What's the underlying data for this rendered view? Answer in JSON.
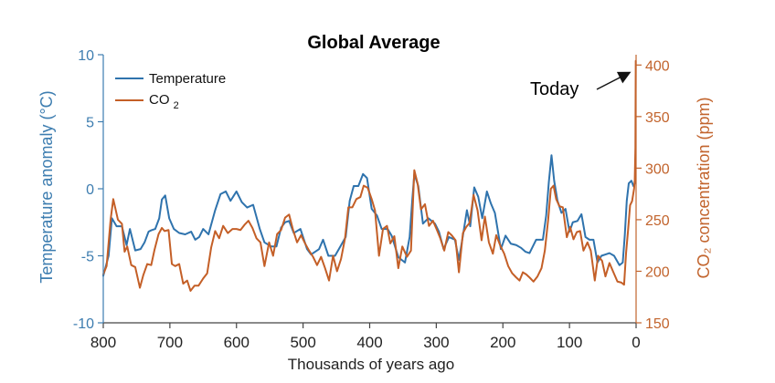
{
  "colors": {
    "temperature": "#2f73ad",
    "co2": "#c45f27",
    "axis_left": "#3d7db0",
    "axis_right": "#c2642d",
    "text": "#111111"
  },
  "chart_data": {
    "type": "line",
    "title": "Global Average",
    "xlabel": "Thousands of years ago",
    "ylabel_left": "Temperature anomaly (°C)",
    "ylabel_right": "CO₂ concentration (ppm)",
    "xlim": [
      800,
      0
    ],
    "ylim_left": [
      -10,
      10
    ],
    "ylim_right": [
      150,
      410
    ],
    "xticks": [
      "800",
      "700",
      "600",
      "500",
      "400",
      "300",
      "200",
      "100",
      "0"
    ],
    "yticks_left": [
      "10",
      "5",
      "0",
      "-5",
      "-10"
    ],
    "yticks_right": [
      "400",
      "350",
      "300",
      "250",
      "200",
      "150"
    ],
    "legend": [
      {
        "label": "Temperature"
      },
      {
        "label": "CO",
        "sub": "2"
      }
    ],
    "annotation": {
      "text": "Today"
    },
    "series": [
      {
        "name": "Temperature",
        "axis": "left",
        "points": [
          [
            800,
            -6.5
          ],
          [
            792,
            -5.0
          ],
          [
            787,
            -2.2
          ],
          [
            780,
            -2.8
          ],
          [
            772,
            -2.8
          ],
          [
            765,
            -4.2
          ],
          [
            760,
            -3.0
          ],
          [
            752,
            -4.6
          ],
          [
            744,
            -4.5
          ],
          [
            738,
            -4.0
          ],
          [
            732,
            -3.2
          ],
          [
            728,
            -3.1
          ],
          [
            722,
            -3.0
          ],
          [
            716,
            -2.2
          ],
          [
            712,
            -0.8
          ],
          [
            707,
            -0.5
          ],
          [
            701,
            -2.2
          ],
          [
            694,
            -3.0
          ],
          [
            686,
            -3.3
          ],
          [
            677,
            -3.4
          ],
          [
            668,
            -3.2
          ],
          [
            662,
            -3.8
          ],
          [
            656,
            -3.6
          ],
          [
            650,
            -3.0
          ],
          [
            642,
            -3.4
          ],
          [
            632,
            -1.6
          ],
          [
            624,
            -0.4
          ],
          [
            616,
            -0.2
          ],
          [
            609,
            -0.9
          ],
          [
            600,
            -0.2
          ],
          [
            592,
            -1.0
          ],
          [
            584,
            -1.4
          ],
          [
            575,
            -1.2
          ],
          [
            565,
            -3.0
          ],
          [
            558,
            -4.0
          ],
          [
            548,
            -4.3
          ],
          [
            540,
            -4.3
          ],
          [
            533,
            -2.9
          ],
          [
            527,
            -2.5
          ],
          [
            521,
            -2.4
          ],
          [
            514,
            -3.3
          ],
          [
            504,
            -3.0
          ],
          [
            494,
            -4.5
          ],
          [
            488,
            -4.9
          ],
          [
            476,
            -4.5
          ],
          [
            470,
            -3.8
          ],
          [
            462,
            -5.0
          ],
          [
            452,
            -5.0
          ],
          [
            444,
            -4.3
          ],
          [
            436,
            -3.6
          ],
          [
            430,
            -0.9
          ],
          [
            424,
            0.2
          ],
          [
            417,
            0.2
          ],
          [
            410,
            1.1
          ],
          [
            404,
            0.8
          ],
          [
            397,
            -1.5
          ],
          [
            389,
            -2.0
          ],
          [
            382,
            -3.0
          ],
          [
            373,
            -3.0
          ],
          [
            367,
            -3.5
          ],
          [
            357,
            -5.1
          ],
          [
            347,
            -5.5
          ],
          [
            340,
            -3.6
          ],
          [
            336,
            -0.8
          ],
          [
            333,
            1.1
          ],
          [
            327,
            0.2
          ],
          [
            320,
            -2.6
          ],
          [
            312,
            -2.2
          ],
          [
            302,
            -2.6
          ],
          [
            296,
            -3.2
          ],
          [
            289,
            -4.5
          ],
          [
            281,
            -3.6
          ],
          [
            272,
            -3.8
          ],
          [
            266,
            -5.3
          ],
          [
            260,
            -3.5
          ],
          [
            254,
            -1.6
          ],
          [
            249,
            -2.8
          ],
          [
            243,
            0.1
          ],
          [
            237,
            -0.6
          ],
          [
            231,
            -2.2
          ],
          [
            224,
            -0.2
          ],
          [
            218,
            -1.1
          ],
          [
            212,
            -1.8
          ],
          [
            203,
            -4.5
          ],
          [
            196,
            -3.5
          ],
          [
            188,
            -4.1
          ],
          [
            180,
            -4.2
          ],
          [
            173,
            -4.4
          ],
          [
            166,
            -4.7
          ],
          [
            160,
            -4.8
          ],
          [
            150,
            -3.8
          ],
          [
            140,
            -3.8
          ],
          [
            135,
            -2.0
          ],
          [
            131,
            0.5
          ],
          [
            127,
            2.5
          ],
          [
            123,
            0.6
          ],
          [
            118,
            -0.9
          ],
          [
            112,
            -1.8
          ],
          [
            106,
            -1.5
          ],
          [
            100,
            -3.2
          ],
          [
            95,
            -2.5
          ],
          [
            88,
            -2.4
          ],
          [
            82,
            -1.9
          ],
          [
            76,
            -3.6
          ],
          [
            70,
            -3.8
          ],
          [
            64,
            -3.8
          ],
          [
            58,
            -5.5
          ],
          [
            52,
            -5.0
          ],
          [
            46,
            -4.9
          ],
          [
            40,
            -4.8
          ],
          [
            33,
            -5.0
          ],
          [
            25,
            -5.7
          ],
          [
            20,
            -5.5
          ],
          [
            17,
            -3.5
          ],
          [
            14,
            -0.9
          ],
          [
            11,
            0.4
          ],
          [
            7,
            0.6
          ],
          [
            4,
            0.2
          ],
          [
            1,
            0.5
          ]
        ]
      },
      {
        "name": "CO2",
        "axis": "right",
        "points": [
          [
            800,
            197
          ],
          [
            795,
            205
          ],
          [
            789,
            250
          ],
          [
            785,
            270
          ],
          [
            778,
            250
          ],
          [
            772,
            246
          ],
          [
            768,
            219
          ],
          [
            764,
            224
          ],
          [
            758,
            206
          ],
          [
            752,
            204
          ],
          [
            745,
            184
          ],
          [
            740,
            196
          ],
          [
            734,
            207
          ],
          [
            728,
            206
          ],
          [
            723,
            221
          ],
          [
            717,
            236
          ],
          [
            712,
            242
          ],
          [
            708,
            239
          ],
          [
            702,
            240
          ],
          [
            697,
            207
          ],
          [
            692,
            205
          ],
          [
            686,
            207
          ],
          [
            680,
            188
          ],
          [
            674,
            191
          ],
          [
            669,
            181
          ],
          [
            663,
            186
          ],
          [
            657,
            186
          ],
          [
            650,
            193
          ],
          [
            644,
            198
          ],
          [
            638,
            223
          ],
          [
            632,
            239
          ],
          [
            626,
            232
          ],
          [
            620,
            244
          ],
          [
            613,
            237
          ],
          [
            606,
            241
          ],
          [
            600,
            241
          ],
          [
            594,
            240
          ],
          [
            588,
            245
          ],
          [
            582,
            249
          ],
          [
            576,
            242
          ],
          [
            570,
            232
          ],
          [
            564,
            228
          ],
          [
            558,
            205
          ],
          [
            551,
            228
          ],
          [
            545,
            215
          ],
          [
            539,
            236
          ],
          [
            533,
            240
          ],
          [
            527,
            252
          ],
          [
            521,
            255
          ],
          [
            515,
            240
          ],
          [
            509,
            228
          ],
          [
            503,
            235
          ],
          [
            497,
            227
          ],
          [
            491,
            220
          ],
          [
            485,
            214
          ],
          [
            479,
            206
          ],
          [
            473,
            214
          ],
          [
            467,
            203
          ],
          [
            461,
            191
          ],
          [
            455,
            215
          ],
          [
            449,
            200
          ],
          [
            443,
            212
          ],
          [
            437,
            232
          ],
          [
            432,
            262
          ],
          [
            426,
            262
          ],
          [
            420,
            270
          ],
          [
            414,
            272
          ],
          [
            409,
            283
          ],
          [
            403,
            281
          ],
          [
            397,
            270
          ],
          [
            392,
            259
          ],
          [
            386,
            215
          ],
          [
            380,
            241
          ],
          [
            374,
            244
          ],
          [
            369,
            227
          ],
          [
            363,
            234
          ],
          [
            357,
            203
          ],
          [
            351,
            224
          ],
          [
            344,
            214
          ],
          [
            338,
            220
          ],
          [
            333,
            298
          ],
          [
            328,
            285
          ],
          [
            323,
            260
          ],
          [
            317,
            265
          ],
          [
            311,
            244
          ],
          [
            305,
            249
          ],
          [
            299,
            240
          ],
          [
            294,
            232
          ],
          [
            288,
            220
          ],
          [
            282,
            238
          ],
          [
            277,
            235
          ],
          [
            271,
            230
          ],
          [
            266,
            199
          ],
          [
            260,
            237
          ],
          [
            255,
            243
          ],
          [
            250,
            247
          ],
          [
            244,
            274
          ],
          [
            238,
            259
          ],
          [
            232,
            230
          ],
          [
            227,
            253
          ],
          [
            221,
            228
          ],
          [
            215,
            217
          ],
          [
            210,
            235
          ],
          [
            204,
            225
          ],
          [
            198,
            217
          ],
          [
            192,
            205
          ],
          [
            186,
            198
          ],
          [
            180,
            194
          ],
          [
            175,
            191
          ],
          [
            170,
            199
          ],
          [
            165,
            197
          ],
          [
            160,
            194
          ],
          [
            154,
            190
          ],
          [
            148,
            195
          ],
          [
            142,
            203
          ],
          [
            137,
            220
          ],
          [
            132,
            250
          ],
          [
            128,
            280
          ],
          [
            124,
            283
          ],
          [
            120,
            270
          ],
          [
            115,
            263
          ],
          [
            110,
            262
          ],
          [
            104,
            233
          ],
          [
            99,
            243
          ],
          [
            94,
            231
          ],
          [
            89,
            238
          ],
          [
            84,
            239
          ],
          [
            79,
            220
          ],
          [
            73,
            228
          ],
          [
            68,
            220
          ],
          [
            62,
            191
          ],
          [
            57,
            215
          ],
          [
            51,
            210
          ],
          [
            46,
            195
          ],
          [
            40,
            208
          ],
          [
            34,
            199
          ],
          [
            28,
            190
          ],
          [
            22,
            189
          ],
          [
            18,
            187
          ],
          [
            15,
            218
          ],
          [
            12,
            240
          ],
          [
            9,
            264
          ],
          [
            6,
            268
          ],
          [
            3,
            280
          ],
          [
            2,
            288
          ],
          [
            1,
            320
          ],
          [
            0.5,
            404
          ]
        ]
      }
    ]
  }
}
